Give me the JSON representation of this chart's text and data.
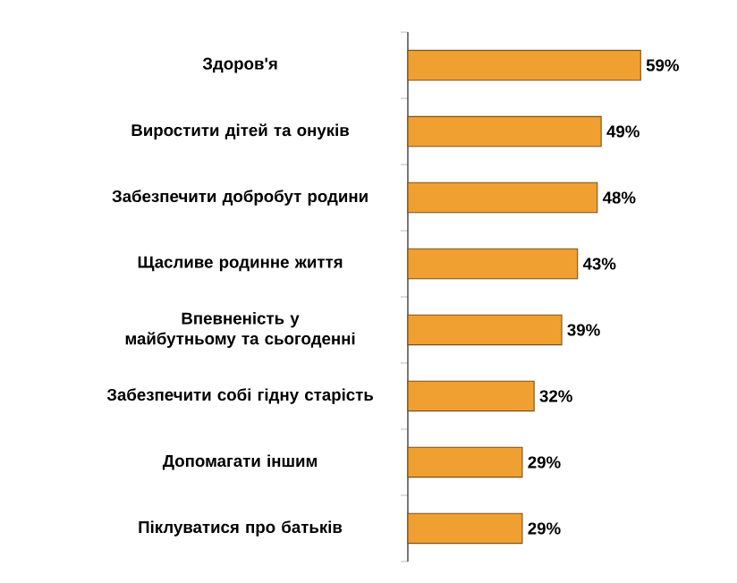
{
  "chart_data": {
    "type": "bar",
    "orientation": "horizontal",
    "categories": [
      "Здоров'я",
      "Виростити дітей та онуків",
      "Забезпечити добробут родини",
      "Щасливе родинне життя",
      "Впевненість у майбутньому та сьогоденні",
      "Забезпечити собі гідну старість",
      "Допомагати іншим",
      "Піклуватися про батьків"
    ],
    "values": [
      59,
      49,
      48,
      43,
      39,
      32,
      29,
      29
    ],
    "value_labels": [
      "59%",
      "49%",
      "48%",
      "43%",
      "39%",
      "32%",
      "29%",
      "29%"
    ],
    "color": "#f0a030"
  }
}
